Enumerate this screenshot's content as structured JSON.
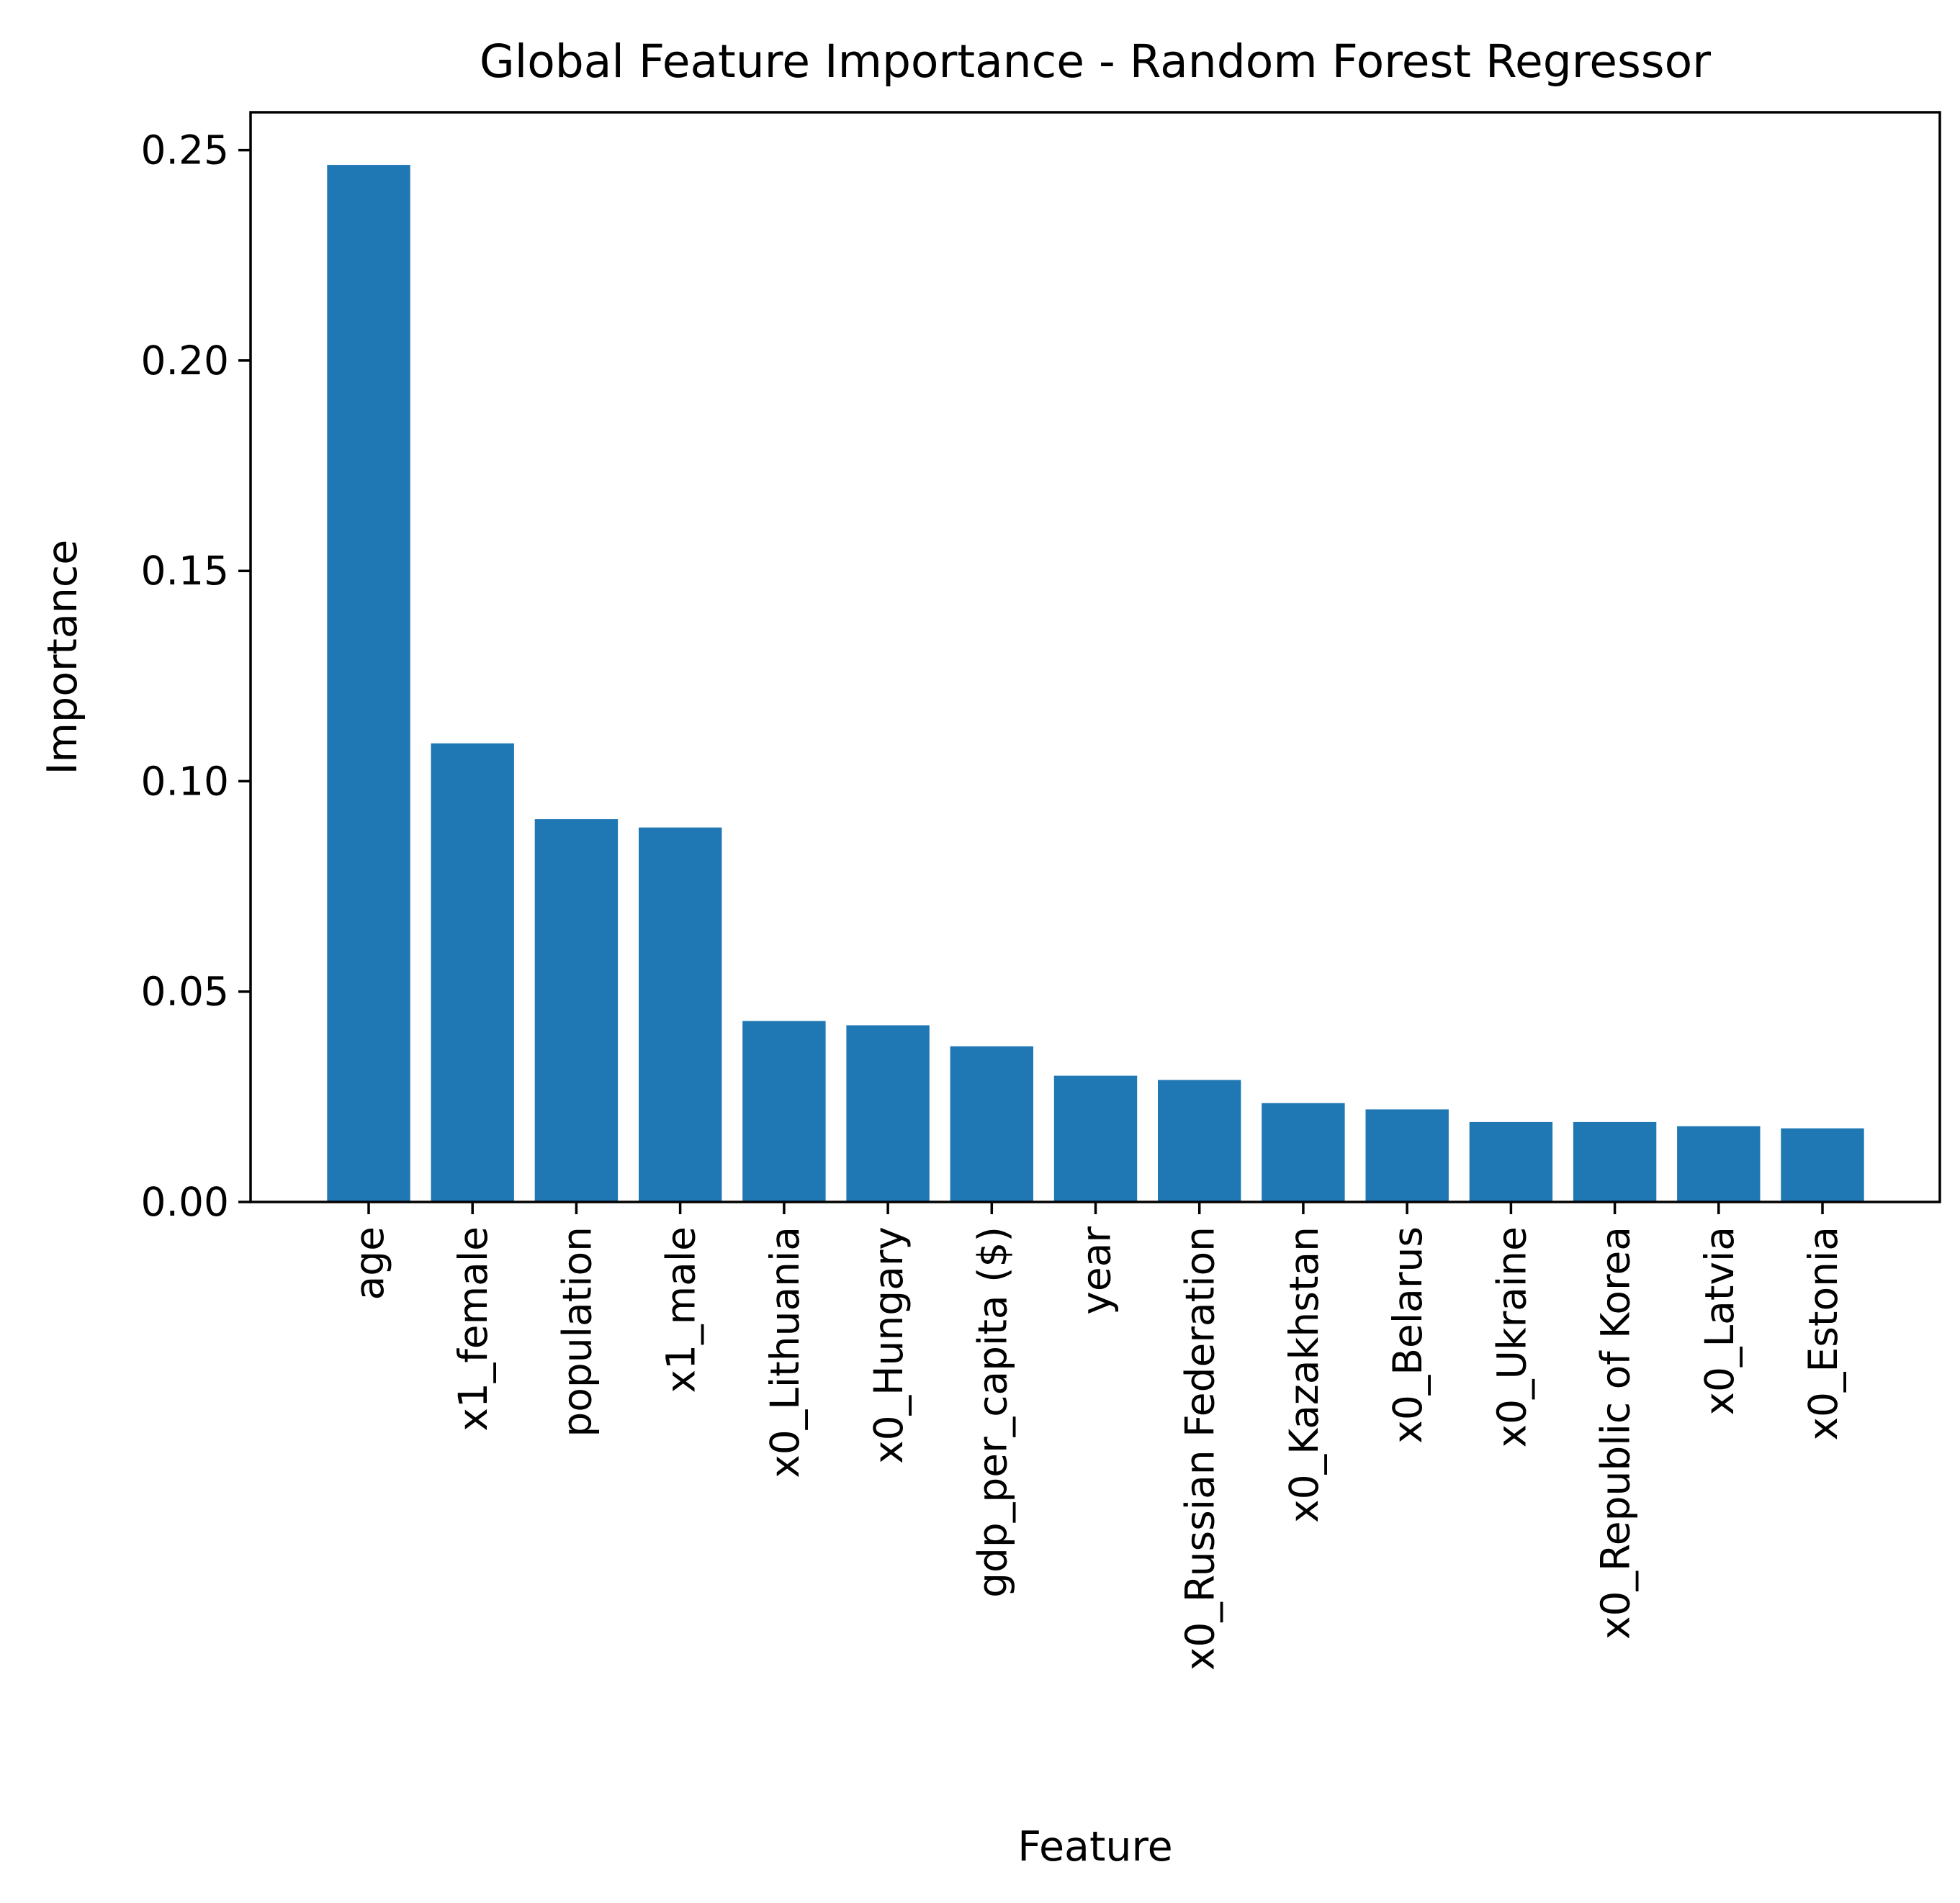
{
  "chart_data": {
    "type": "bar",
    "title": "Global Feature Importance - Random Forest Regressor",
    "xlabel": "Feature",
    "ylabel": "Importance",
    "categories": [
      "age",
      "x1_female",
      "population",
      "x1_male",
      "x0_Lithuania",
      "x0_Hungary",
      "gdp_per_capita ($)",
      "year",
      "x0_Russian Federation",
      "x0_Kazakhstan",
      "x0_Belarus",
      "x0_Ukraine",
      "x0_Republic of Korea",
      "x0_Latvia",
      "x0_Estonia"
    ],
    "values": [
      0.2465,
      0.109,
      0.091,
      0.089,
      0.043,
      0.042,
      0.037,
      0.03,
      0.029,
      0.0235,
      0.022,
      0.019,
      0.019,
      0.018,
      0.0175
    ],
    "ylim": [
      0,
      0.259
    ],
    "yticks": [
      "0.00",
      "0.05",
      "0.10",
      "0.15",
      "0.20",
      "0.25"
    ],
    "grid": false,
    "legend": "none",
    "bar_color": "#1f77b4"
  }
}
